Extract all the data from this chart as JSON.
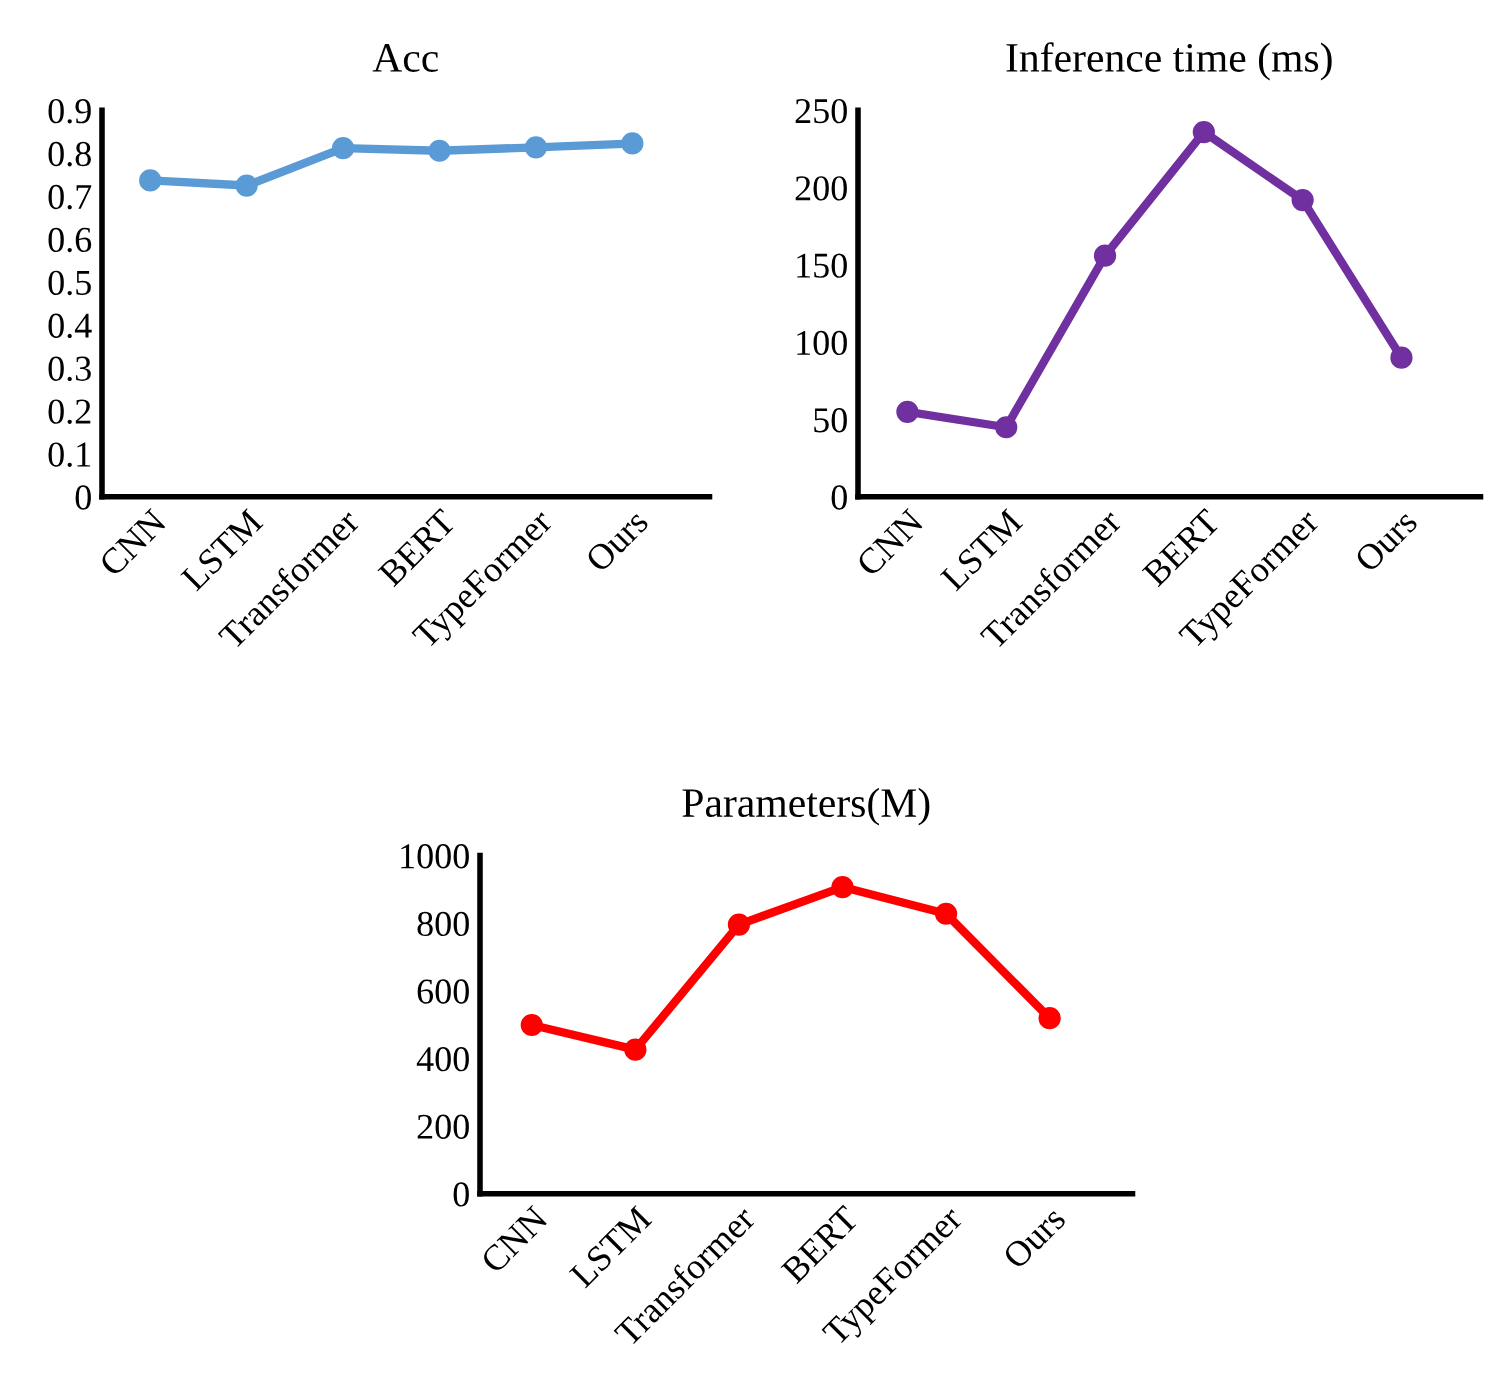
{
  "chart_data": [
    {
      "type": "line",
      "title": "Acc",
      "categories": [
        "CNN",
        "LSTM",
        "Transformer",
        "BERT",
        "TypeFormer",
        "Ours"
      ],
      "series": [
        {
          "color": "#5b9bd5",
          "values": [
            0.737,
            0.725,
            0.812,
            0.806,
            0.814,
            0.823
          ]
        }
      ],
      "ylim": [
        0,
        0.9
      ],
      "yticks": [
        0,
        0.1,
        0.2,
        0.3,
        0.4,
        0.5,
        0.6,
        0.7,
        0.8,
        0.9
      ],
      "marker": "circle"
    },
    {
      "type": "line",
      "title": "Inference time (ms)",
      "categories": [
        "CNN",
        "LSTM",
        "Transformer",
        "BERT",
        "TypeFormer",
        "Ours"
      ],
      "series": [
        {
          "color": "#7030a0",
          "values": [
            55,
            45,
            156,
            236,
            192,
            90
          ]
        }
      ],
      "ylim": [
        0,
        250
      ],
      "yticks": [
        0,
        50,
        100,
        150,
        200,
        250
      ],
      "marker": "circle"
    },
    {
      "type": "line",
      "title": "Parameters(M)",
      "categories": [
        "CNN",
        "LSTM",
        "Transformer",
        "BERT",
        "TypeFormer",
        "Ours"
      ],
      "series": [
        {
          "color": "#ff0000",
          "values": [
            499,
            426,
            796,
            907,
            828,
            519
          ]
        }
      ],
      "ylim": [
        0,
        1000
      ],
      "yticks": [
        0,
        200,
        400,
        600,
        800,
        1000
      ],
      "marker": "circle"
    }
  ]
}
